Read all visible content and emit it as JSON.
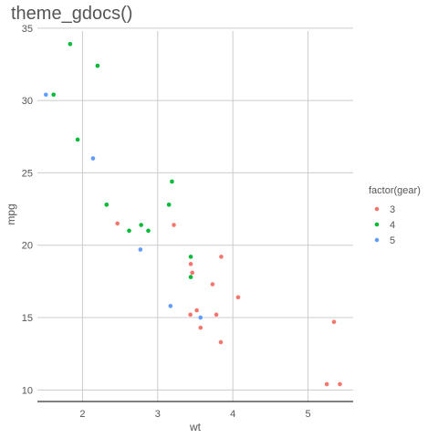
{
  "chart_data": {
    "type": "scatter",
    "title": "theme_gdocs()",
    "xlabel": "wt",
    "ylabel": "mpg",
    "xlim": [
      1.4,
      5.6
    ],
    "ylim": [
      9.2,
      34.8
    ],
    "x_ticks": [
      2,
      3,
      4,
      5
    ],
    "y_ticks": [
      10,
      15,
      20,
      25,
      30,
      35
    ],
    "grid": true,
    "legend_position": "right",
    "legend_title": "factor(gear)",
    "series": [
      {
        "name": "3",
        "color": "#f8766d",
        "points": [
          [
            2.465,
            21.5
          ],
          [
            3.215,
            21.4
          ],
          [
            3.44,
            18.7
          ],
          [
            3.46,
            18.1
          ],
          [
            3.57,
            14.3
          ],
          [
            4.07,
            16.4
          ],
          [
            3.73,
            17.3
          ],
          [
            3.78,
            15.2
          ],
          [
            5.25,
            10.4
          ],
          [
            5.424,
            10.4
          ],
          [
            5.345,
            14.7
          ],
          [
            3.52,
            15.5
          ],
          [
            3.435,
            15.2
          ],
          [
            3.84,
            13.3
          ],
          [
            3.845,
            19.2
          ]
        ]
      },
      {
        "name": "4",
        "color": "#00ba38",
        "points": [
          [
            2.62,
            21.0
          ],
          [
            2.875,
            21.0
          ],
          [
            2.32,
            22.8
          ],
          [
            3.19,
            24.4
          ],
          [
            3.15,
            22.8
          ],
          [
            3.44,
            19.2
          ],
          [
            3.44,
            17.8
          ],
          [
            2.2,
            32.4
          ],
          [
            1.615,
            30.4
          ],
          [
            1.835,
            33.9
          ],
          [
            1.935,
            27.3
          ],
          [
            2.78,
            21.4
          ]
        ]
      },
      {
        "name": "5",
        "color": "#619cff",
        "points": [
          [
            2.14,
            26.0
          ],
          [
            1.513,
            30.4
          ],
          [
            3.17,
            15.8
          ],
          [
            2.77,
            19.7
          ],
          [
            3.57,
            15.0
          ]
        ]
      }
    ]
  }
}
